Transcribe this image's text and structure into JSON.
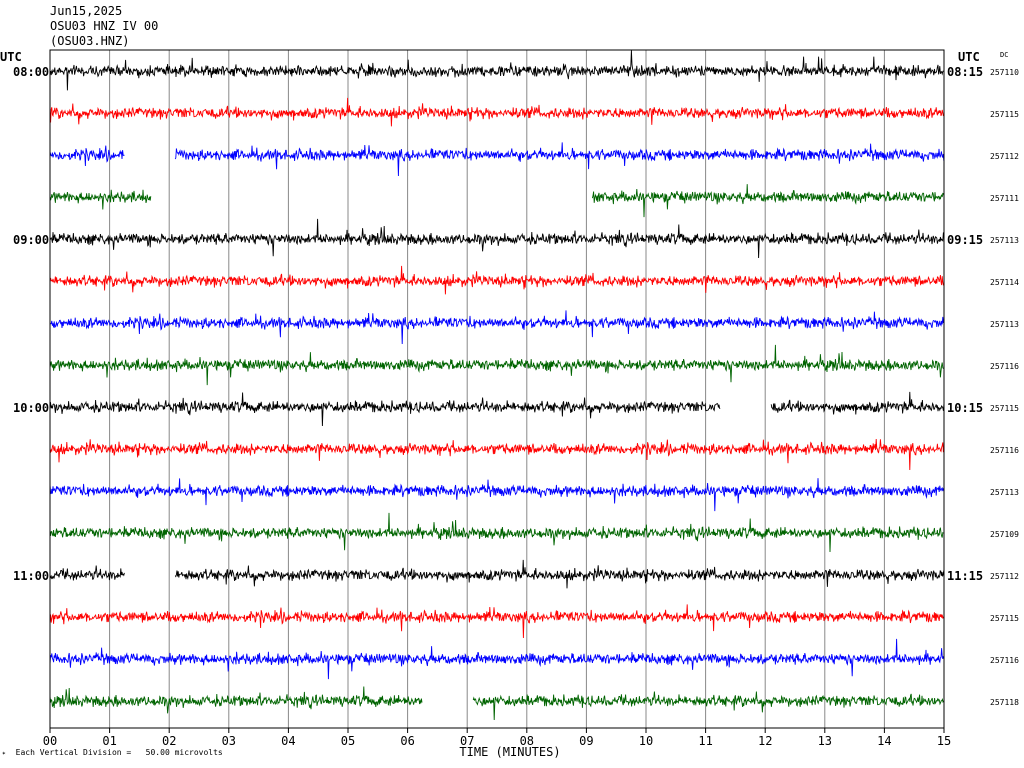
{
  "header": {
    "date": "Jun15,2025",
    "station_line": "OSU03 HNZ IV 00",
    "station_code": "(OSU03.HNZ)"
  },
  "chart_data": {
    "type": "line",
    "title": "",
    "xlabel": "TIME (MINUTES)",
    "ylabel": "",
    "x_ticks": [
      "00",
      "01",
      "02",
      "03",
      "04",
      "05",
      "06",
      "07",
      "08",
      "09",
      "10",
      "11",
      "12",
      "13",
      "14",
      "15"
    ],
    "xlim": [
      0,
      15
    ],
    "grid": "vertical-minute-lines",
    "left_axis_title": "UTC",
    "right_axis_title": "UTC",
    "right_column_title": "DC",
    "left_time_labels": [
      {
        "row": 0,
        "label": "08:00"
      },
      {
        "row": 4,
        "label": "09:00"
      },
      {
        "row": 8,
        "label": "10:00"
      },
      {
        "row": 12,
        "label": "11:00"
      }
    ],
    "right_time_labels": [
      {
        "row": 0,
        "label": "08:15"
      },
      {
        "row": 4,
        "label": "09:15"
      },
      {
        "row": 8,
        "label": "10:15"
      },
      {
        "row": 12,
        "label": "11:15"
      }
    ],
    "trace_colors": [
      "#000000",
      "#ff0000",
      "#0000ff",
      "#006400"
    ],
    "traces": [
      {
        "row": 0,
        "dc": "257110",
        "gaps": []
      },
      {
        "row": 1,
        "dc": "257115",
        "gaps": []
      },
      {
        "row": 2,
        "dc": "257112",
        "gaps": [
          [
            1.25,
            2.1
          ]
        ]
      },
      {
        "row": 3,
        "dc": "257111",
        "gaps": [
          [
            1.7,
            9.1
          ]
        ]
      },
      {
        "row": 4,
        "dc": "257113",
        "gaps": []
      },
      {
        "row": 5,
        "dc": "257114",
        "gaps": []
      },
      {
        "row": 6,
        "dc": "257113",
        "gaps": []
      },
      {
        "row": 7,
        "dc": "257116",
        "gaps": []
      },
      {
        "row": 8,
        "dc": "257115",
        "gaps": [
          [
            11.25,
            12.1
          ]
        ]
      },
      {
        "row": 9,
        "dc": "257116",
        "gaps": []
      },
      {
        "row": 10,
        "dc": "257113",
        "gaps": []
      },
      {
        "row": 11,
        "dc": "257109",
        "gaps": []
      },
      {
        "row": 12,
        "dc": "257112",
        "gaps": [
          [
            1.25,
            2.1
          ]
        ]
      },
      {
        "row": 13,
        "dc": "257115",
        "gaps": []
      },
      {
        "row": 14,
        "dc": "257116",
        "gaps": []
      },
      {
        "row": 15,
        "dc": "257118",
        "gaps": [
          [
            6.25,
            7.1
          ]
        ]
      }
    ],
    "scale_note": "Each Vertical Division =",
    "scale_value": "50.00 microvolts"
  }
}
